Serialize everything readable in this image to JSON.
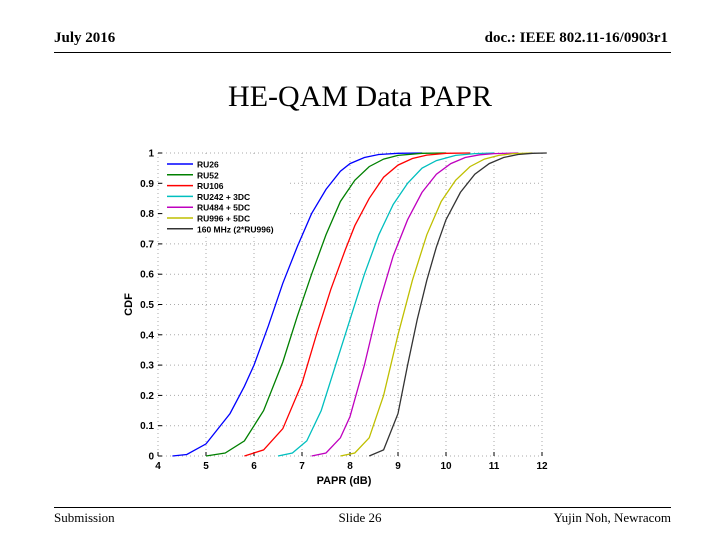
{
  "header": {
    "date": "July 2016",
    "doc_id": "doc.: IEEE 802.11-16/0903r1"
  },
  "slide_title": "HE-QAM Data PAPR",
  "footer": {
    "left": "Submission",
    "center": "Slide 26",
    "right": "Yujin Noh, Newracom"
  },
  "chart_data": {
    "type": "line",
    "title": "",
    "xlabel": "PAPR (dB)",
    "ylabel": "CDF",
    "xlim": [
      4,
      12
    ],
    "ylim": [
      0,
      1
    ],
    "xticks": [
      "4",
      "5",
      "6",
      "7",
      "8",
      "9",
      "10",
      "11",
      "12"
    ],
    "yticks": [
      "0",
      "0.1",
      "0.2",
      "0.3",
      "0.4",
      "0.5",
      "0.6",
      "0.7",
      "0.8",
      "0.9",
      "1"
    ],
    "grid": "dotted",
    "legend_position": "top-left",
    "series": [
      {
        "name": "RU26",
        "color": "#0000ff",
        "x": [
          4.3,
          4.6,
          5.0,
          5.5,
          5.8,
          6.0,
          6.3,
          6.6,
          6.9,
          7.2,
          7.5,
          7.8,
          8.0,
          8.3,
          8.6,
          9.0,
          9.5
        ],
        "y": [
          0.0,
          0.005,
          0.04,
          0.14,
          0.23,
          0.3,
          0.43,
          0.57,
          0.69,
          0.8,
          0.88,
          0.94,
          0.965,
          0.985,
          0.995,
          0.999,
          1.0
        ]
      },
      {
        "name": "RU52",
        "color": "#008000",
        "x": [
          5.0,
          5.4,
          5.8,
          6.2,
          6.6,
          6.9,
          7.2,
          7.5,
          7.8,
          8.1,
          8.4,
          8.7,
          9.0,
          9.5,
          10.0
        ],
        "y": [
          0.0,
          0.01,
          0.05,
          0.15,
          0.31,
          0.46,
          0.6,
          0.73,
          0.84,
          0.91,
          0.955,
          0.98,
          0.992,
          0.999,
          1.0
        ]
      },
      {
        "name": "RU106",
        "color": "#ff0000",
        "x": [
          5.8,
          6.2,
          6.6,
          7.0,
          7.3,
          7.6,
          7.9,
          8.1,
          8.4,
          8.7,
          9.0,
          9.3,
          9.6,
          10.0,
          10.5
        ],
        "y": [
          0.0,
          0.02,
          0.09,
          0.24,
          0.4,
          0.55,
          0.68,
          0.76,
          0.85,
          0.92,
          0.96,
          0.982,
          0.993,
          0.999,
          1.0
        ]
      },
      {
        "name": "RU242 + 3DC",
        "color": "#00bfbf",
        "x": [
          6.5,
          6.8,
          7.1,
          7.4,
          7.7,
          8.0,
          8.3,
          8.6,
          8.9,
          9.2,
          9.5,
          9.8,
          10.2,
          10.6,
          11.0
        ],
        "y": [
          0.0,
          0.01,
          0.05,
          0.15,
          0.3,
          0.45,
          0.6,
          0.73,
          0.83,
          0.9,
          0.95,
          0.975,
          0.992,
          0.998,
          1.0
        ]
      },
      {
        "name": "RU484 + 5DC",
        "color": "#bf00bf",
        "x": [
          7.2,
          7.5,
          7.8,
          8.0,
          8.3,
          8.6,
          8.9,
          9.2,
          9.5,
          9.8,
          10.1,
          10.4,
          10.7,
          11.0,
          11.5
        ],
        "y": [
          0.0,
          0.01,
          0.06,
          0.13,
          0.3,
          0.5,
          0.66,
          0.78,
          0.87,
          0.93,
          0.965,
          0.985,
          0.994,
          0.998,
          1.0
        ]
      },
      {
        "name": "RU996 + 5DC",
        "color": "#bfbf00",
        "x": [
          7.8,
          8.1,
          8.4,
          8.7,
          9.0,
          9.3,
          9.6,
          9.9,
          10.2,
          10.5,
          10.8,
          11.1,
          11.4,
          11.8
        ],
        "y": [
          0.0,
          0.01,
          0.06,
          0.2,
          0.4,
          0.58,
          0.73,
          0.84,
          0.91,
          0.955,
          0.98,
          0.992,
          0.998,
          1.0
        ]
      },
      {
        "name": "160 MHz (2*RU996)",
        "color": "#333333",
        "x": [
          8.4,
          8.7,
          9.0,
          9.2,
          9.4,
          9.6,
          9.8,
          10.0,
          10.3,
          10.6,
          10.9,
          11.2,
          11.5,
          11.8,
          12.1
        ],
        "y": [
          0.0,
          0.02,
          0.14,
          0.3,
          0.45,
          0.58,
          0.69,
          0.78,
          0.87,
          0.93,
          0.965,
          0.985,
          0.995,
          0.999,
          1.0
        ]
      }
    ]
  }
}
